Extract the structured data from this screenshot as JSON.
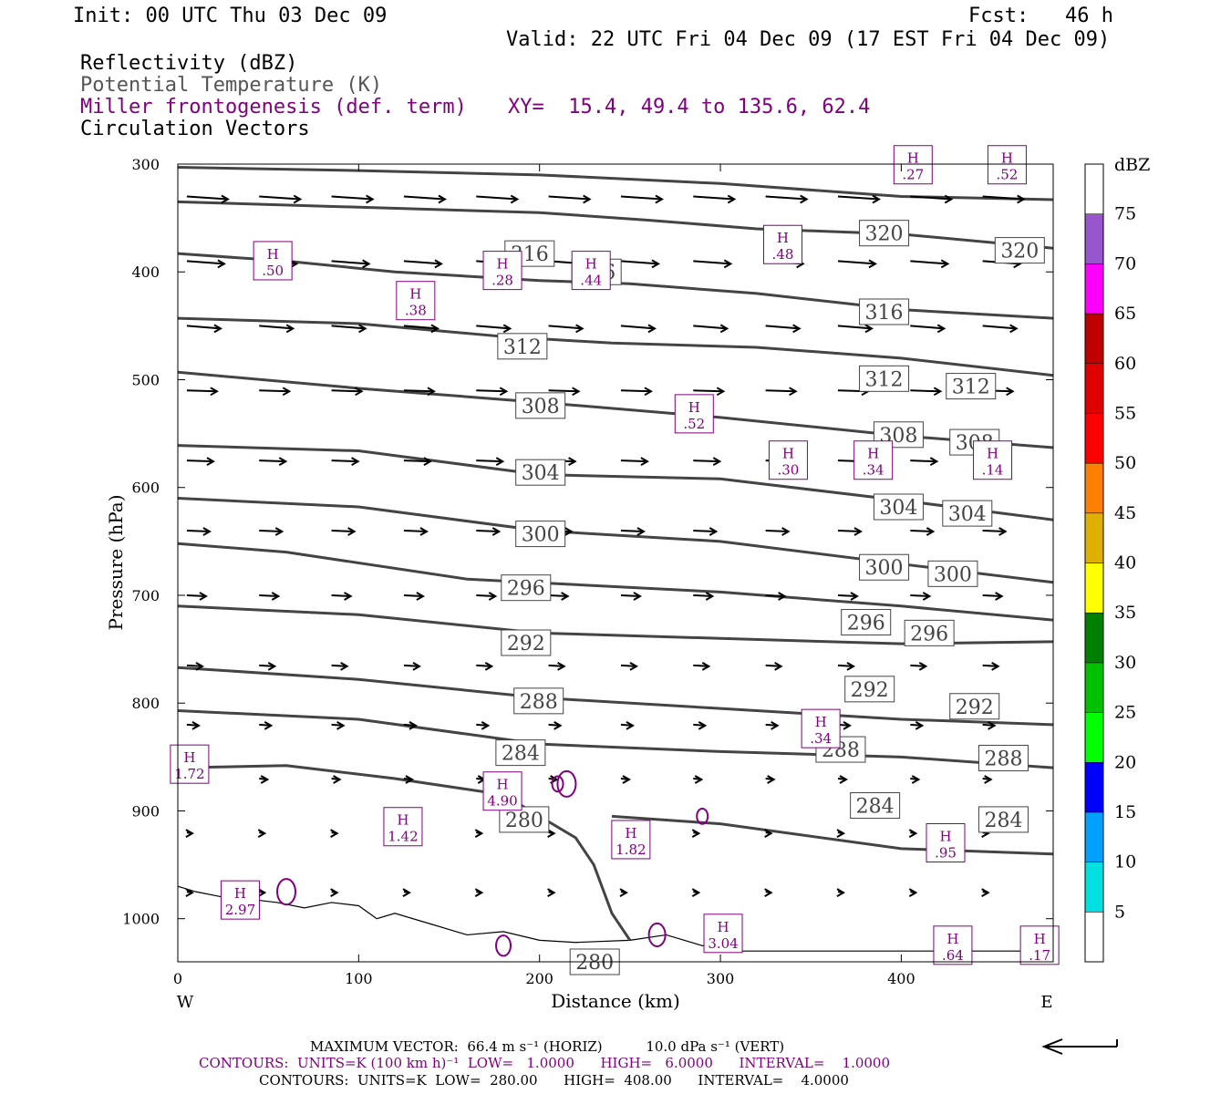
{
  "header": {
    "init": "Init: 00 UTC Thu 03 Dec 09",
    "fcst": "Fcst:   46 h",
    "valid": "Valid: 22 UTC Fri 04 Dec 09 (17 EST Fri 04 Dec 09)",
    "field1": "Reflectivity (dBZ)",
    "field2": "Potential Temperature (K)",
    "field3": "Miller frontogenesis (def. term)",
    "xy": "XY=  15.4, 49.4 to 135.6, 62.4",
    "field4": "Circulation Vectors"
  },
  "colors": {
    "theta": "#444444",
    "fronto": "#800080",
    "terrain": "#000000"
  },
  "chart_data": {
    "type": "cross-section",
    "xlabel": "Distance (km)",
    "ylabel": "Pressure (hPa)",
    "xlim": [
      0,
      484
    ],
    "ylim": [
      1040,
      300
    ],
    "x_ticks": [
      0,
      100,
      200,
      300,
      400
    ],
    "y_ticks": [
      300,
      400,
      500,
      600,
      700,
      800,
      900,
      1000
    ],
    "left_label": "W",
    "right_label": "E",
    "theta_contours": [
      {
        "level": 320,
        "points": [
          [
            0,
            303
          ],
          [
            100,
            306
          ],
          [
            200,
            310
          ],
          [
            300,
            318
          ],
          [
            400,
            330
          ],
          [
            484,
            333
          ]
        ]
      },
      {
        "level": 320,
        "points": [
          [
            0,
            335
          ],
          [
            100,
            340
          ],
          [
            200,
            345
          ],
          [
            260,
            352
          ],
          [
            320,
            360
          ],
          [
            400,
            365
          ],
          [
            484,
            378
          ]
        ]
      },
      {
        "level": 316,
        "points": [
          [
            0,
            383
          ],
          [
            60,
            390
          ],
          [
            120,
            400
          ],
          [
            200,
            408
          ],
          [
            250,
            411
          ],
          [
            320,
            420
          ],
          [
            400,
            435
          ],
          [
            484,
            443
          ]
        ]
      },
      {
        "level": 312,
        "points": [
          [
            0,
            443
          ],
          [
            100,
            448
          ],
          [
            180,
            460
          ],
          [
            240,
            466
          ],
          [
            320,
            470
          ],
          [
            400,
            480
          ],
          [
            484,
            496
          ]
        ]
      },
      {
        "level": 308,
        "points": [
          [
            0,
            493
          ],
          [
            100,
            508
          ],
          [
            200,
            521
          ],
          [
            300,
            535
          ],
          [
            400,
            552
          ],
          [
            484,
            563
          ]
        ]
      },
      {
        "level": 304,
        "points": [
          [
            0,
            561
          ],
          [
            100,
            566
          ],
          [
            200,
            588
          ],
          [
            300,
            592
          ],
          [
            400,
            612
          ],
          [
            484,
            630
          ]
        ]
      },
      {
        "level": 300,
        "points": [
          [
            0,
            610
          ],
          [
            100,
            618
          ],
          [
            200,
            640
          ],
          [
            300,
            650
          ],
          [
            400,
            671
          ],
          [
            484,
            688
          ]
        ]
      },
      {
        "level": 296,
        "points": [
          [
            0,
            652
          ],
          [
            60,
            660
          ],
          [
            160,
            685
          ],
          [
            300,
            697
          ],
          [
            400,
            710
          ],
          [
            484,
            723
          ]
        ]
      },
      {
        "level": 292,
        "points": [
          [
            0,
            710
          ],
          [
            100,
            718
          ],
          [
            200,
            735
          ],
          [
            300,
            740
          ],
          [
            400,
            745
          ],
          [
            484,
            743
          ]
        ]
      },
      {
        "level": 288,
        "points": [
          [
            0,
            767
          ],
          [
            100,
            778
          ],
          [
            200,
            795
          ],
          [
            300,
            805
          ],
          [
            400,
            815
          ],
          [
            484,
            820
          ]
        ]
      },
      {
        "level": 284,
        "points": [
          [
            0,
            807
          ],
          [
            100,
            815
          ],
          [
            200,
            838
          ],
          [
            300,
            845
          ],
          [
            400,
            850
          ],
          [
            484,
            860
          ]
        ]
      },
      {
        "level": 280,
        "points": [
          [
            0,
            860
          ],
          [
            60,
            858
          ],
          [
            120,
            870
          ],
          [
            180,
            885
          ],
          [
            220,
            925
          ],
          [
            230,
            950
          ],
          [
            240,
            995
          ],
          [
            250,
            1020
          ]
        ]
      },
      {
        "level": 288,
        "points": [
          [
            240,
            905
          ],
          [
            300,
            912
          ],
          [
            400,
            935
          ],
          [
            484,
            940
          ]
        ]
      }
    ],
    "theta_labels": [
      {
        "text": "316",
        "x": 194,
        "y": 383
      },
      {
        "text": "316",
        "x": 231,
        "y": 400
      },
      {
        "text": "320",
        "x": 390,
        "y": 364
      },
      {
        "text": "320",
        "x": 465,
        "y": 380
      },
      {
        "text": "316",
        "x": 390,
        "y": 437
      },
      {
        "text": "312",
        "x": 190,
        "y": 469
      },
      {
        "text": "312",
        "x": 390,
        "y": 499
      },
      {
        "text": "312",
        "x": 438,
        "y": 506
      },
      {
        "text": "308",
        "x": 200,
        "y": 524
      },
      {
        "text": "308",
        "x": 398,
        "y": 551
      },
      {
        "text": "308",
        "x": 440,
        "y": 558
      },
      {
        "text": "304",
        "x": 200,
        "y": 586
      },
      {
        "text": "304",
        "x": 398,
        "y": 618
      },
      {
        "text": "304",
        "x": 436,
        "y": 624
      },
      {
        "text": "300",
        "x": 200,
        "y": 643
      },
      {
        "text": "300",
        "x": 390,
        "y": 674
      },
      {
        "text": "300",
        "x": 428,
        "y": 680
      },
      {
        "text": "296",
        "x": 192,
        "y": 693
      },
      {
        "text": "296",
        "x": 380,
        "y": 725
      },
      {
        "text": "296",
        "x": 415,
        "y": 735
      },
      {
        "text": "292",
        "x": 192,
        "y": 744
      },
      {
        "text": "292",
        "x": 382,
        "y": 787
      },
      {
        "text": "292",
        "x": 440,
        "y": 803
      },
      {
        "text": "288",
        "x": 199,
        "y": 798
      },
      {
        "text": "288",
        "x": 366,
        "y": 843
      },
      {
        "text": "288",
        "x": 456,
        "y": 851
      },
      {
        "text": "284",
        "x": 189,
        "y": 846
      },
      {
        "text": "284",
        "x": 385,
        "y": 895
      },
      {
        "text": "284",
        "x": 456,
        "y": 908
      },
      {
        "text": "280",
        "x": 191,
        "y": 908
      },
      {
        "text": "280",
        "x": 230,
        "y": 1040
      }
    ],
    "fronto_maxima": [
      {
        "text": ".50",
        "x": 52,
        "y": 393
      },
      {
        "text": ".38",
        "x": 131,
        "y": 430
      },
      {
        "text": ".28",
        "x": 179,
        "y": 402
      },
      {
        "text": ".44",
        "x": 228,
        "y": 402
      },
      {
        "text": ".48",
        "x": 334,
        "y": 378
      },
      {
        "text": ".52",
        "x": 285,
        "y": 535
      },
      {
        "text": ".30",
        "x": 337,
        "y": 578
      },
      {
        "text": ".34",
        "x": 384,
        "y": 578
      },
      {
        "text": ".14",
        "x": 450,
        "y": 578
      },
      {
        "text": ".34",
        "x": 355,
        "y": 827
      },
      {
        "text": "1.72",
        "x": 6,
        "y": 860
      },
      {
        "text": "4.90",
        "x": 179,
        "y": 885
      },
      {
        "text": "1.42",
        "x": 124,
        "y": 918
      },
      {
        "text": "1.82",
        "x": 250,
        "y": 930
      },
      {
        "text": ".95",
        "x": 424,
        "y": 933
      },
      {
        "text": "2.97",
        "x": 34,
        "y": 986
      },
      {
        "text": "3.04",
        "x": 301,
        "y": 1017
      },
      {
        "text": ".64",
        "x": 428,
        "y": 1028
      },
      {
        "text": ".17",
        "x": 476,
        "y": 1028
      },
      {
        "text": ".27",
        "x": 406,
        "y": 304
      },
      {
        "text": ".52",
        "x": 458,
        "y": 304
      }
    ],
    "terrain": [
      [
        0,
        970
      ],
      [
        10,
        975
      ],
      [
        25,
        980
      ],
      [
        40,
        982
      ],
      [
        55,
        985
      ],
      [
        70,
        990
      ],
      [
        85,
        985
      ],
      [
        100,
        988
      ],
      [
        110,
        1000
      ],
      [
        120,
        995
      ],
      [
        140,
        1005
      ],
      [
        160,
        1015
      ],
      [
        180,
        1012
      ],
      [
        200,
        1020
      ],
      [
        220,
        1022
      ],
      [
        250,
        1020
      ],
      [
        270,
        1015
      ],
      [
        290,
        1025
      ],
      [
        310,
        1030
      ],
      [
        350,
        1030
      ],
      [
        400,
        1030
      ],
      [
        484,
        1030
      ]
    ],
    "vectors_desc": "circulation vectors, max 66.4 m/s horizontal",
    "colorbar": {
      "label": "dBZ",
      "levels": [
        5,
        10,
        15,
        20,
        25,
        30,
        35,
        40,
        45,
        50,
        55,
        60,
        65,
        70,
        75
      ],
      "colors": [
        "#00e0e0",
        "#00a0ff",
        "#0000ff",
        "#00ff00",
        "#00c000",
        "#008000",
        "#ffff00",
        "#e0b000",
        "#ff8000",
        "#ff0000",
        "#e00000",
        "#c00000",
        "#ff00ff",
        "#9955cc",
        "#ffffff"
      ]
    }
  },
  "footer": {
    "line1": "MAXIMUM VECTOR:  66.4 m s⁻¹ (HORIZ)          10.0 dPa s⁻¹ (VERT)",
    "line2": "CONTOURS:  UNITS=K (100 km h)⁻¹  LOW=   1.0000      HIGH=   6.0000      INTERVAL=    1.0000",
    "line3": "CONTOURS:  UNITS=K  LOW=  280.00      HIGH=  408.00      INTERVAL=    4.0000"
  }
}
